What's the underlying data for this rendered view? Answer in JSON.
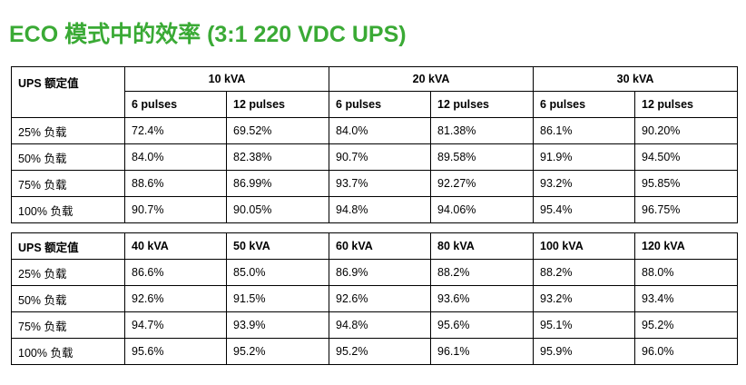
{
  "title": "ECO 模式中的效率 (3:1 220 VDC UPS)",
  "table1": {
    "rating_label": "UPS 额定值",
    "groups": [
      "10 kVA",
      "20 kVA",
      "30 kVA"
    ],
    "subheaders": [
      "6 pulses",
      "12 pulses",
      "6 pulses",
      "12 pulses",
      "6 pulses",
      "12 pulses"
    ],
    "rows": [
      {
        "load": "25% 负载",
        "values": [
          "72.4%",
          "69.52%",
          "84.0%",
          "81.38%",
          "86.1%",
          "90.20%"
        ]
      },
      {
        "load": "50% 负载",
        "values": [
          "84.0%",
          "82.38%",
          "90.7%",
          "89.58%",
          "91.9%",
          "94.50%"
        ]
      },
      {
        "load": "75% 负载",
        "values": [
          "88.6%",
          "86.99%",
          "93.7%",
          "92.27%",
          "93.2%",
          "95.85%"
        ]
      },
      {
        "load": "100% 负载",
        "values": [
          "90.7%",
          "90.05%",
          "94.8%",
          "94.06%",
          "95.4%",
          "96.75%"
        ]
      }
    ]
  },
  "table2": {
    "rating_label": "UPS 额定值",
    "headers": [
      "40 kVA",
      "50 kVA",
      "60 kVA",
      "80 kVA",
      "100 kVA",
      "120 kVA"
    ],
    "rows": [
      {
        "load": "25% 负载",
        "values": [
          "86.6%",
          "85.0%",
          "86.9%",
          "88.2%",
          "88.2%",
          "88.0%"
        ]
      },
      {
        "load": "50% 负载",
        "values": [
          "92.6%",
          "91.5%",
          "92.6%",
          "93.6%",
          "93.2%",
          "93.4%"
        ]
      },
      {
        "load": "75% 负载",
        "values": [
          "94.7%",
          "93.9%",
          "94.8%",
          "95.6%",
          "95.1%",
          "95.2%"
        ]
      },
      {
        "load": "100% 负载",
        "values": [
          "95.6%",
          "95.2%",
          "95.2%",
          "96.1%",
          "95.9%",
          "96.0%"
        ]
      }
    ]
  }
}
